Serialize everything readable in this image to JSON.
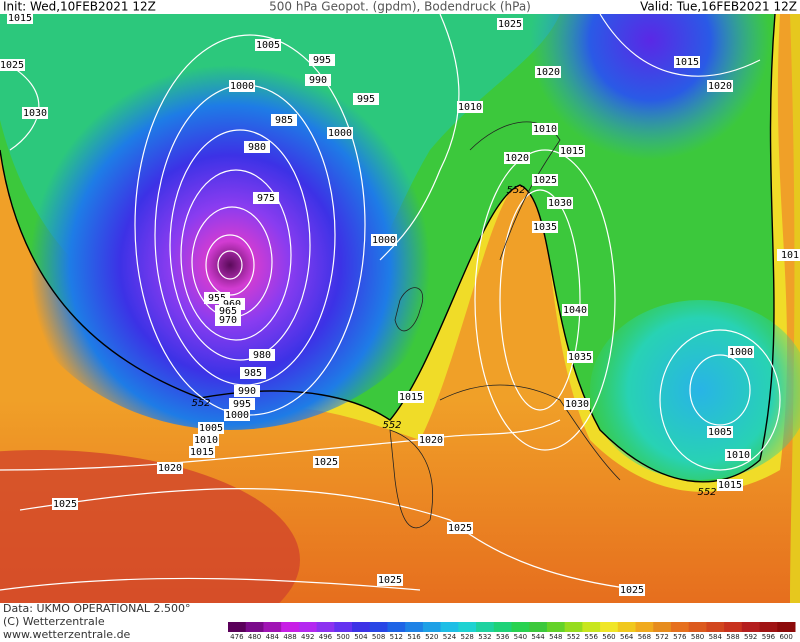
{
  "header": {
    "init": "Init: Wed,10FEB2021 12Z",
    "title": "500 hPa Geopot. (gpdm), Bodendruck (hPa)",
    "valid": "Valid: Tue,16FEB2021 12Z"
  },
  "isobar_labels": [
    "1015",
    "1025",
    "1030",
    "1005",
    "995",
    "990",
    "1000",
    "995",
    "985",
    "1000",
    "980",
    "975",
    "1000",
    "955",
    "960",
    "965",
    "970",
    "980",
    "985",
    "990",
    "995",
    "1000",
    "1005",
    "1010",
    "1015",
    "1020",
    "1025",
    "1025",
    "1025",
    "1025",
    "1025",
    "1020",
    "1015",
    "1030",
    "1035",
    "1040",
    "1035",
    "1030",
    "1025",
    "1020",
    "1015",
    "1010",
    "1010",
    "1025",
    "1020",
    "1015",
    "1020",
    "1000",
    "1005",
    "1010",
    "1015",
    "101"
  ],
  "geopotential_labels": [
    "552",
    "552",
    "552",
    "552"
  ],
  "colorbar": {
    "ticks": [
      476,
      480,
      484,
      488,
      492,
      496,
      500,
      504,
      508,
      512,
      516,
      520,
      524,
      528,
      532,
      536,
      540,
      544,
      548,
      552,
      556,
      560,
      564,
      568,
      572,
      576,
      580,
      584,
      588,
      592,
      596,
      600
    ]
  },
  "footer": {
    "data": "Data: UKMO OPERATIONAL 2.500°",
    "copyright": "(C) Wetterzentrale",
    "url": "www.wetterzentrale.de"
  }
}
